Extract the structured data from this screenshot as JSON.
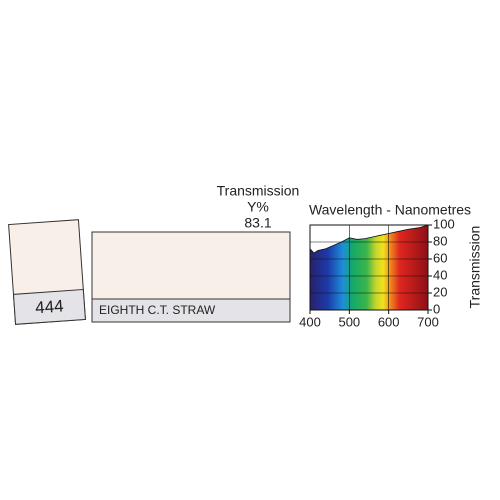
{
  "swatch": {
    "number": "444",
    "name": "EIGHTH C.T. STRAW"
  },
  "transmission": {
    "label": "Transmission",
    "unit": "Y%",
    "value": 83.1
  },
  "chart_data": {
    "type": "area",
    "title": "Wavelength - Nanometres",
    "ylabel": "Transmission",
    "x": [
      400,
      410,
      420,
      440,
      460,
      480,
      500,
      520,
      540,
      560,
      580,
      600,
      620,
      650,
      680,
      700
    ],
    "values": [
      72,
      67,
      70,
      72,
      76,
      80,
      85,
      83,
      84,
      86,
      88,
      90,
      92,
      95,
      97,
      100
    ],
    "xlim": [
      400,
      700
    ],
    "xticks": [
      400,
      500,
      600,
      700
    ],
    "ylim": [
      0,
      100
    ],
    "yticks": [
      0,
      20,
      40,
      60,
      80,
      100
    ],
    "grid": true
  }
}
